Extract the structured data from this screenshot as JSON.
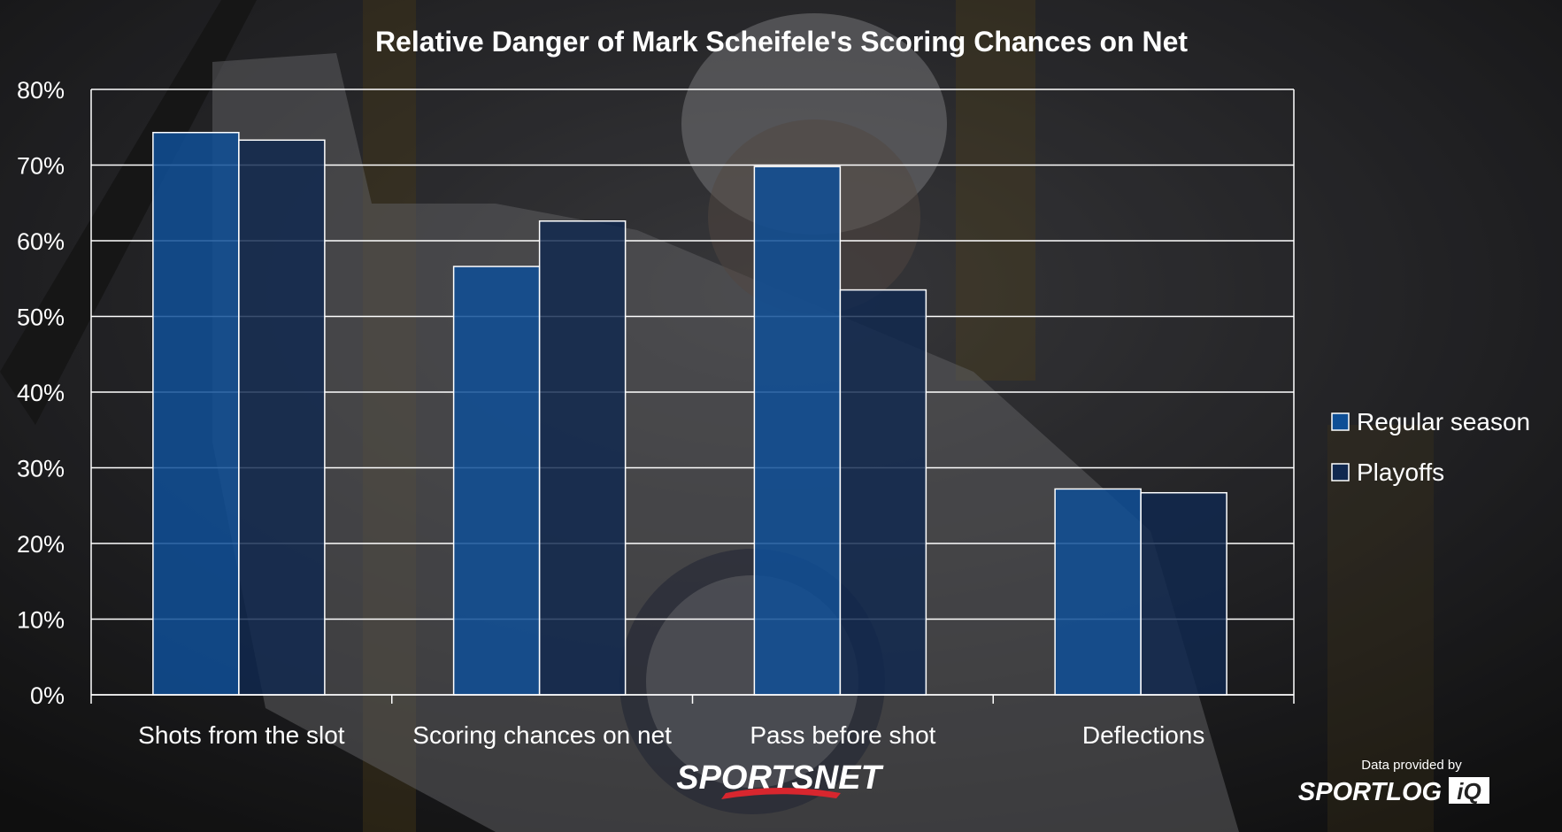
{
  "colors": {
    "regular_season": "#0f4f96",
    "playoffs": "#10284f",
    "grid": "#ffffff",
    "text": "#ffffff",
    "sportsnet_accent": "#d8262e"
  },
  "branding": {
    "network": "SPORTSNET",
    "credit_line": "Data provided by",
    "data_partner": "SPORTLOG",
    "data_partner_suffix": "iQ"
  },
  "chart_data": {
    "type": "bar",
    "title": "Relative Danger of Mark Scheifele's Scoring Chances on Net",
    "xlabel": "",
    "ylabel": "",
    "ylim": [
      0,
      80
    ],
    "ytick_values": [
      0,
      10,
      20,
      30,
      40,
      50,
      60,
      70,
      80
    ],
    "ytick_labels": [
      "0%",
      "10%",
      "20%",
      "30%",
      "40%",
      "50%",
      "60%",
      "70%",
      "80%"
    ],
    "categories": [
      "Shots from the slot",
      "Scoring chances on net",
      "Pass before shot",
      "Deflections"
    ],
    "series": [
      {
        "name": "Regular season",
        "values": [
          74.3,
          56.6,
          69.8,
          27.2
        ]
      },
      {
        "name": "Playoffs",
        "values": [
          73.3,
          62.6,
          53.5,
          26.7
        ]
      }
    ],
    "grid": true,
    "legend_position": "right"
  }
}
